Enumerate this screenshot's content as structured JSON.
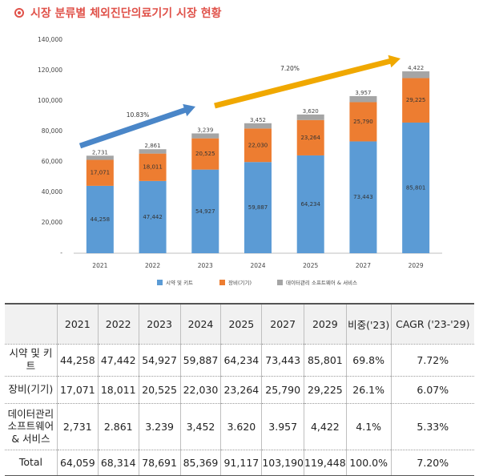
{
  "title": "시장 분류별 체외진단의료기기 시장 현황",
  "colors": {
    "title": "#e0524a",
    "reagent": "#5b9bd5",
    "equipment": "#ed7d31",
    "software": "#a5a5a5",
    "arrow_blue": "#4a86c8",
    "arrow_orange": "#f0a800"
  },
  "chart_data": {
    "type": "bar",
    "stacked": true,
    "categories": [
      "2021",
      "2022",
      "2023",
      "2024",
      "2025",
      "2027",
      "2029"
    ],
    "series": [
      {
        "name": "시약 및 키트",
        "values": [
          44258,
          47442,
          54927,
          59887,
          64234,
          73443,
          85801
        ],
        "labels": [
          "44,258",
          "47,442",
          "54,927",
          "59,887",
          "64,234",
          "73,443",
          "85,801"
        ],
        "color": "#5b9bd5"
      },
      {
        "name": "장비(기기)",
        "values": [
          17071,
          18011,
          20525,
          22030,
          23264,
          25790,
          29225
        ],
        "labels": [
          "17,071",
          "18,011",
          "20,525",
          "22,030",
          "23,264",
          "25,790",
          "29,225"
        ],
        "color": "#ed7d31"
      },
      {
        "name": "데이터관리 소프트웨어 & 서비스",
        "values": [
          2731,
          2861,
          3239,
          3452,
          3620,
          3957,
          4422
        ],
        "labels": [
          "2,731",
          "2,861",
          "3,239",
          "3,452",
          "3,620",
          "3,957",
          "4,422"
        ],
        "color": "#a5a5a5"
      }
    ],
    "ylim": [
      0,
      140000
    ],
    "yticks": [
      0,
      20000,
      40000,
      60000,
      80000,
      100000,
      120000,
      140000
    ],
    "yticklabels": [
      "-",
      "20,000",
      "40,000",
      "60,000",
      "80,000",
      "100,000",
      "120,000",
      "140,000"
    ],
    "grid": false,
    "legend": "bottom",
    "annotations": [
      {
        "text": "10.83%",
        "span": [
          "2021",
          "2023"
        ],
        "color": "#4a86c8"
      },
      {
        "text": "7.20%",
        "span": [
          "2023",
          "2029"
        ],
        "color": "#f0a800"
      }
    ]
  },
  "table": {
    "headers": [
      "",
      "2021",
      "2022",
      "2023",
      "2024",
      "2025",
      "2027",
      "2029",
      "비중('23)",
      "CAGR ('23-'29)"
    ],
    "rows": [
      {
        "label": "시약 및 키트",
        "cells": [
          "44,258",
          "47,442",
          "54,927",
          "59,887",
          "64,234",
          "73,443",
          "85,801",
          "69.8%",
          "7.72%"
        ]
      },
      {
        "label": "장비(기기)",
        "cells": [
          "17,071",
          "18,011",
          "20,525",
          "22,030",
          "23,264",
          "25,790",
          "29,225",
          "26.1%",
          "6.07%"
        ]
      },
      {
        "label": "데이터관리 소프트웨어 & 서비스",
        "cells": [
          "2,731",
          "2.861",
          "3.239",
          "3,452",
          "3.620",
          "3.957",
          "4,422",
          "4.1%",
          "5.33%"
        ]
      },
      {
        "label": "Total",
        "cells": [
          "64,059",
          "68,314",
          "78,691",
          "85,369",
          "91,117",
          "103,190",
          "119,448",
          "100.0%",
          "7.20%"
        ]
      }
    ]
  }
}
